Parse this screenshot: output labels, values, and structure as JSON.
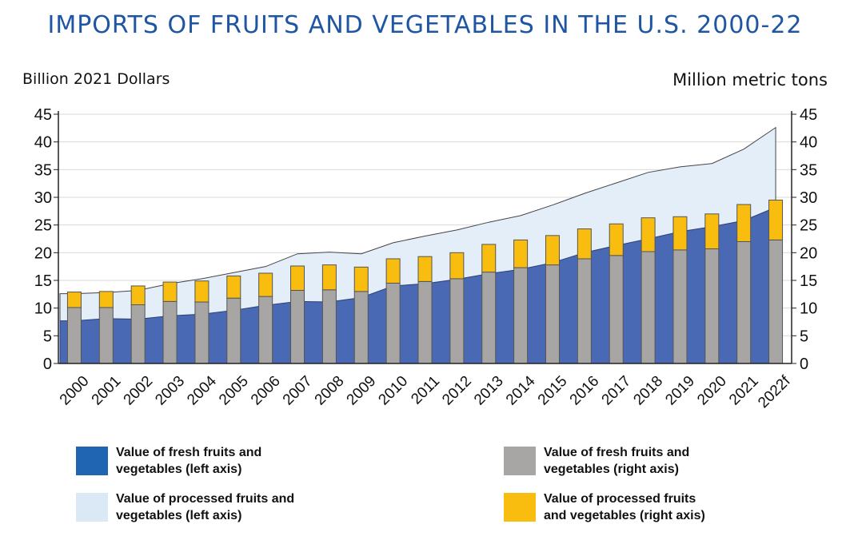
{
  "chart_data": {
    "type": "bar+area",
    "title": "IMPORTS OF FRUITS AND VEGETABLES IN THE U.S. 2000-22",
    "left_axis_label": "Billion 2021 Dollars",
    "right_axis_label": "Million metric tons",
    "ylim_left": [
      0,
      45
    ],
    "ylim_right": [
      0,
      45
    ],
    "yticks": [
      "0",
      "5",
      "10",
      "15",
      "20",
      "25",
      "30",
      "35",
      "40",
      "45"
    ],
    "grid": true,
    "categories": [
      "2000",
      "2001",
      "2002",
      "2003",
      "2004",
      "2005",
      "2006",
      "2007",
      "2008",
      "2009",
      "2010",
      "2011",
      "2012",
      "2013",
      "2014",
      "2015",
      "2016",
      "2017",
      "2018",
      "2019",
      "2020",
      "2021",
      "2022f"
    ],
    "series": [
      {
        "name": "Value of fresh fruits and vegetables (left axis)",
        "kind": "area",
        "axis": "left",
        "color": "#4a69b4",
        "values": [
          7.7,
          8.1,
          8.0,
          8.6,
          8.9,
          9.6,
          10.5,
          11.2,
          11.1,
          11.9,
          14.0,
          14.4,
          15.2,
          16.2,
          17.0,
          18.2,
          20.0,
          21.3,
          22.5,
          23.8,
          24.7,
          25.8,
          28.2
        ]
      },
      {
        "name": "Value of processed fruits and vegetables (left axis)",
        "kind": "area-total",
        "axis": "left",
        "color": "#e3eef9",
        "total_values": [
          12.6,
          12.8,
          13.2,
          14.4,
          15.3,
          16.4,
          17.5,
          19.8,
          20.1,
          19.8,
          21.8,
          23.0,
          24.1,
          25.5,
          26.7,
          28.6,
          30.7,
          32.6,
          34.5,
          35.5,
          36.1,
          38.7,
          42.6
        ]
      },
      {
        "name": "Value of fresh fruits and vegetables (right axis)",
        "kind": "bar",
        "axis": "right",
        "color": "#a8a6a4",
        "values": [
          10.1,
          10.1,
          10.6,
          11.2,
          11.1,
          11.8,
          12.1,
          13.2,
          13.3,
          13.0,
          14.5,
          14.8,
          15.3,
          16.5,
          17.3,
          17.8,
          18.9,
          19.5,
          20.2,
          20.5,
          20.7,
          22.0,
          22.3
        ]
      },
      {
        "name": "Value of processed fruits and vegetables (right axis)",
        "kind": "bar-stacked",
        "axis": "right",
        "color": "#f8bd0f",
        "values": [
          2.8,
          2.9,
          3.4,
          3.5,
          3.8,
          4.0,
          4.2,
          4.4,
          4.5,
          4.4,
          4.4,
          4.5,
          4.7,
          5.0,
          5.0,
          5.3,
          5.4,
          5.7,
          6.1,
          6.0,
          6.3,
          6.7,
          7.2
        ]
      }
    ],
    "legend": [
      {
        "label_line1": "Value of fresh fruits and",
        "label_line2": "vegetables (left axis)",
        "color": "#2065b2"
      },
      {
        "label_line1": "Value of fresh fruits and",
        "label_line2": "vegetables (right axis)",
        "color": "#a8a6a4"
      },
      {
        "label_line1": "Value of processed fruits and",
        "label_line2": "vegetables (left axis)",
        "color": "#dbe9f6"
      },
      {
        "label_line1": "Value of processed fruits",
        "label_line2": "and vegetables (right axis)",
        "color": "#f8bd0f"
      }
    ]
  }
}
